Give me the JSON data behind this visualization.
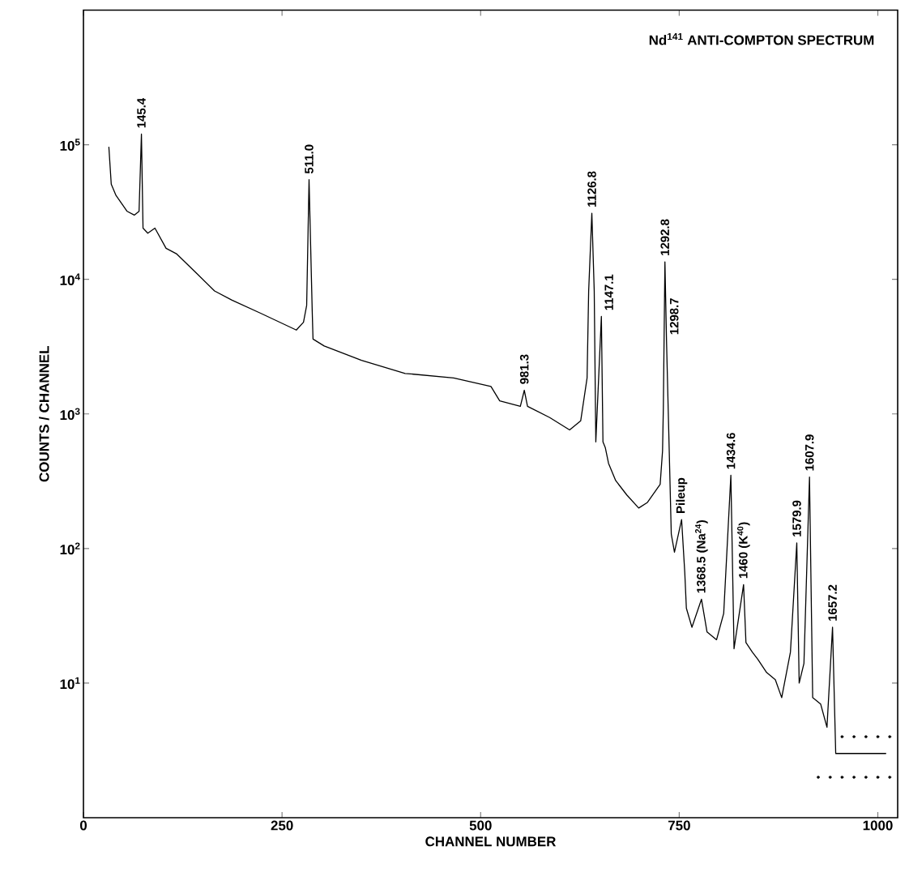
{
  "chart_data": {
    "type": "line",
    "title": "Nd$^{141}$ ANTI-COMPTON SPECTRUM",
    "xlabel": "CHANNEL NUMBER",
    "ylabel": "COUNTS / CHANNEL",
    "log": "y",
    "marker": "none",
    "xlim": [
      0,
      1025
    ],
    "ylim": [
      1,
      1000000
    ],
    "xticks": [
      0,
      250,
      500,
      750,
      1000
    ],
    "yticks": [
      {
        "value": 10,
        "label": "10$^{1}$"
      },
      {
        "value": 100,
        "label": "10$^{2}$"
      },
      {
        "value": 1000,
        "label": "10$^{3}$"
      },
      {
        "value": 10000,
        "label": "10$^{4}$"
      },
      {
        "value": 100000,
        "label": "10$^{5}$"
      }
    ],
    "series": [
      {
        "color": "#000000",
        "x": [
          32,
          35,
          41,
          55,
          64,
          70,
          73,
          75,
          81,
          90,
          104,
          117,
          143,
          165,
          187,
          223,
          268,
          277,
          281,
          284,
          288,
          289,
          303,
          350,
          405,
          466,
          513,
          524,
          550,
          555,
          559,
          587,
          612,
          626,
          634,
          636,
          640,
          643,
          645,
          652,
          654,
          657,
          661,
          670,
          684,
          699,
          710,
          726,
          729,
          730,
          732,
          734,
          740,
          744,
          753,
          757,
          759,
          766,
          778,
          785,
          797,
          806,
          815,
          819,
          831,
          834,
          842,
          849,
          860,
          871,
          879,
          890,
          898,
          901,
          907,
          914,
          918,
          928,
          936,
          943,
          947,
          975,
          1010
        ],
        "values": [
          96000,
          51000,
          42000,
          32000,
          30000,
          32000,
          120000,
          24000,
          22000,
          24000,
          17000,
          15500,
          11000,
          8200,
          7000,
          5600,
          4200,
          4800,
          6400,
          55000,
          5800,
          3600,
          3200,
          2500,
          2000,
          1850,
          1600,
          1250,
          1140,
          1500,
          1140,
          940,
          760,
          890,
          1850,
          8200,
          31000,
          8200,
          620,
          5300,
          620,
          560,
          430,
          320,
          250,
          200,
          220,
          300,
          530,
          1100,
          13500,
          3500,
          128,
          94,
          164,
          66,
          36,
          26,
          42,
          24,
          21,
          33,
          350,
          18,
          54,
          20,
          17,
          15,
          12,
          10.6,
          7.8,
          17,
          110,
          10,
          14,
          340,
          7.8,
          7,
          4.7,
          26,
          3,
          3,
          3
        ]
      },
      {
        "type": "scatter",
        "color": "#000000",
        "x": [
          925,
          940,
          955,
          970,
          985,
          1000,
          1015,
          955,
          970,
          985,
          1000,
          1015
        ],
        "values": [
          2,
          2,
          2,
          2,
          2,
          2,
          2,
          4,
          4,
          4,
          4,
          4
        ]
      }
    ],
    "annotations": [
      {
        "text": "145.4",
        "x": 73,
        "y": 120000
      },
      {
        "text": "511.0",
        "x": 284,
        "y": 55000
      },
      {
        "text": "981.3",
        "x": 555,
        "y": 1500
      },
      {
        "text": "1126.8",
        "x": 640,
        "y": 31000
      },
      {
        "text": "1147.1",
        "x": 652,
        "y": 5300
      },
      {
        "text": "1292.8",
        "x": 732,
        "y": 13500
      },
      {
        "text": "1298.7",
        "x": 734,
        "y": 3500
      },
      {
        "text": "Pileup",
        "x": 753,
        "y": 164
      },
      {
        "text": "1368.5 (Na$^{24}$)",
        "x": 778,
        "y": 42
      },
      {
        "text": "1434.6",
        "x": 815,
        "y": 350
      },
      {
        "text": "1460 (K$^{40}$)",
        "x": 831,
        "y": 54
      },
      {
        "text": "1579.9",
        "x": 898,
        "y": 110
      },
      {
        "text": "1607.9",
        "x": 914,
        "y": 340
      },
      {
        "text": "1657.2",
        "x": 943,
        "y": 26
      }
    ]
  }
}
